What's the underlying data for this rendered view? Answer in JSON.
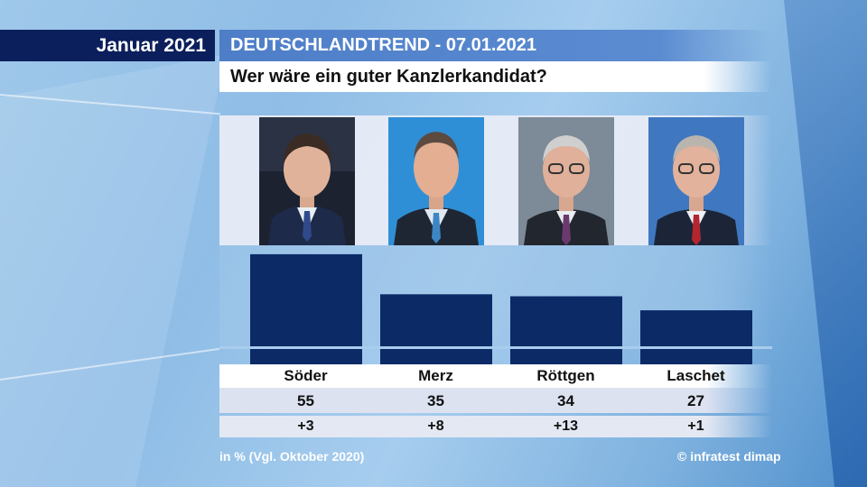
{
  "header": {
    "date_label": "Januar 2021",
    "brand_label": "DEUTSCHLANDTREND - 07.01.2021",
    "question": "Wer wäre ein guter Kanzlerkandidat?"
  },
  "colors": {
    "bar": "#0b2a66",
    "header_dark": "#0b1f5c",
    "header_blue": "#4e7ec8"
  },
  "chart_data": {
    "type": "bar",
    "categories": [
      "Söder",
      "Merz",
      "Röttgen",
      "Laschet"
    ],
    "values": [
      55,
      35,
      34,
      27
    ],
    "changes": [
      "+3",
      "+8",
      "+13",
      "+1"
    ],
    "title": "Wer wäre ein guter Kanzlerkandidat?",
    "ylim": [
      0,
      60
    ],
    "grid": false,
    "legend": "none"
  },
  "footer": {
    "unit_note": "in % (Vgl. Oktober 2020)",
    "source": "© infratest dimap"
  }
}
